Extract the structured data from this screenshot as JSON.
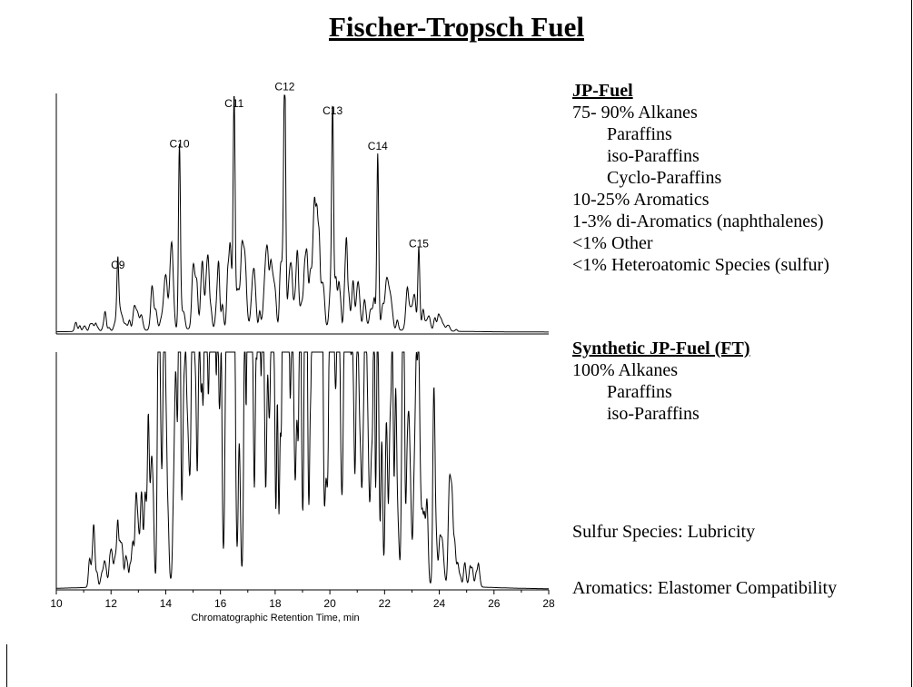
{
  "slide": {
    "title": "Fischer-Tropsch Fuel"
  },
  "jp_fuel": {
    "heading": "JP-Fuel",
    "lines": [
      {
        "text": "75- 90% Alkanes",
        "indent": false
      },
      {
        "text": "Paraffins",
        "indent": true
      },
      {
        "text": "iso-Paraffins",
        "indent": true
      },
      {
        "text": "Cyclo-Paraffins",
        "indent": true
      },
      {
        "text": "10-25% Aromatics",
        "indent": false
      },
      {
        "text": "1-3% di-Aromatics (naphthalenes)",
        "indent": false
      },
      {
        "text": "<1% Other",
        "indent": false
      },
      {
        "text": "<1% Heteroatomic Species (sulfur)",
        "indent": false
      }
    ]
  },
  "synthetic_fuel": {
    "heading": "Synthetic JP-Fuel (FT)",
    "lines": [
      {
        "text": "100% Alkanes",
        "indent": false
      },
      {
        "text": "Paraffins",
        "indent": true
      },
      {
        "text": "iso-Paraffins",
        "indent": true
      }
    ]
  },
  "notes": {
    "sulfur": "Sulfur Species: Lubricity",
    "aromatics": "Aromatics: Elastomer Compatibility"
  },
  "chart_data": [
    {
      "type": "line",
      "name": "jp-fuel-chromatogram",
      "xlabel": "",
      "xlim": [
        10,
        28
      ],
      "ylim": [
        0,
        1
      ],
      "peaks": [
        {
          "label": "C9",
          "x": 12.25,
          "y": 0.24
        },
        {
          "label": "C10",
          "x": 14.5,
          "y": 0.75
        },
        {
          "label": "C11",
          "x": 16.5,
          "y": 0.92
        },
        {
          "label": "C12",
          "x": 18.35,
          "y": 0.99
        },
        {
          "label": "C13",
          "x": 20.1,
          "y": 0.89
        },
        {
          "label": "C14",
          "x": 21.75,
          "y": 0.74
        },
        {
          "label": "C15",
          "x": 23.25,
          "y": 0.33
        }
      ]
    },
    {
      "type": "line",
      "name": "synthetic-fuel-chromatogram",
      "xlabel": "Chromatographic Retention Time, min",
      "xlim": [
        10,
        28
      ],
      "ylim": [
        0,
        1
      ],
      "xticks": [
        10,
        12,
        14,
        16,
        18,
        20,
        22,
        24,
        26,
        28
      ],
      "xtick_labels": [
        "10",
        "12",
        "14",
        "16",
        "18",
        "20",
        "22",
        "24",
        "26",
        "28"
      ]
    }
  ]
}
